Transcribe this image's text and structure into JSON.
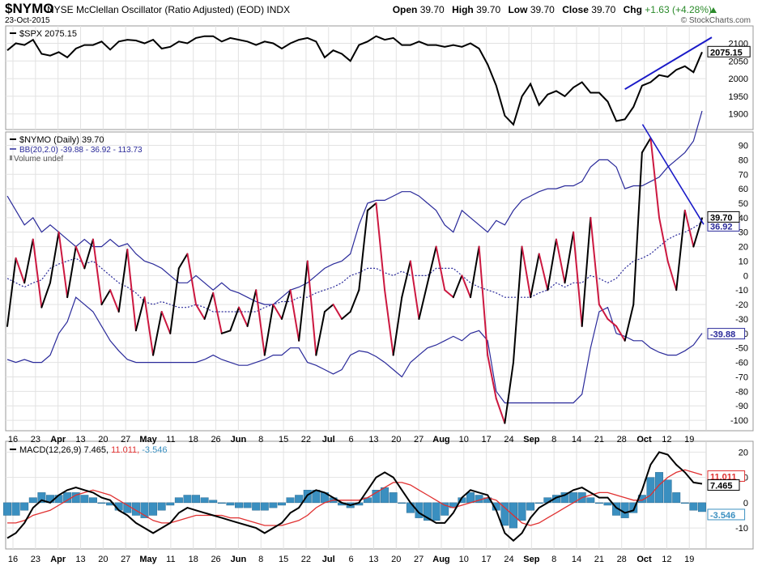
{
  "header": {
    "symbol": "$NYMO",
    "description": "NYSE McClellan Oscillator (Ratio Adjusted) (EOD) INDX",
    "date": "23-Oct-2015",
    "brand": "© StockCharts.com",
    "open_label": "Open",
    "open": "39.70",
    "high_label": "High",
    "high": "39.70",
    "low_label": "Low",
    "low": "39.70",
    "close_label": "Close",
    "close": "39.70",
    "chg_label": "Chg",
    "chg": "+1.63 (+4.28%)"
  },
  "colors": {
    "price_line": "#000000",
    "oscillator_up": "#000000",
    "oscillator_down": "#cc1840",
    "bollinger": "#2a2a9a",
    "trendline": "#1a1ac8",
    "macd_line": "#000000",
    "signal_line": "#e03030",
    "histogram": "#3a8fc0",
    "grid": "#e2e2e2"
  },
  "x_axis": {
    "tick_labels": [
      "16",
      "23",
      "Apr",
      "13",
      "20",
      "27",
      "May",
      "11",
      "18",
      "26",
      "Jun",
      "8",
      "15",
      "22",
      "Jul",
      "6",
      "13",
      "20",
      "27",
      "Aug",
      "10",
      "17",
      "24",
      "Sep",
      "8",
      "14",
      "21",
      "28",
      "Oct",
      "12",
      "19"
    ],
    "month_labels": [
      "Apr",
      "May",
      "Jun",
      "Jul",
      "Aug",
      "Sep",
      "Oct"
    ]
  },
  "chart_data": [
    {
      "type": "line",
      "panel": "price",
      "legend": "$SPX 2075.15",
      "last_value": "2075.15",
      "y_ticks": [
        1900,
        1950,
        2000,
        2050,
        2100
      ],
      "y_tick_labels": [
        "1900",
        "1950",
        "2000",
        "2050",
        "2100"
      ],
      "ylim": [
        1865,
        2140
      ],
      "x": [
        "Mar 16",
        "Mar 18",
        "Mar 20",
        "Mar 23",
        "Mar 25",
        "Mar 27",
        "Mar 31",
        "Apr 2",
        "Apr 7",
        "Apr 9",
        "Apr 13",
        "Apr 15",
        "Apr 17",
        "Apr 21",
        "Apr 23",
        "Apr 27",
        "Apr 29",
        "May 1",
        "May 5",
        "May 7",
        "May 11",
        "May 13",
        "May 15",
        "May 19",
        "May 21",
        "May 26",
        "May 28",
        "Jun 1",
        "Jun 3",
        "Jun 5",
        "Jun 9",
        "Jun 11",
        "Jun 15",
        "Jun 17",
        "Jun 19",
        "Jun 23",
        "Jun 25",
        "Jun 29",
        "Jul 1",
        "Jul 6",
        "Jul 8",
        "Jul 10",
        "Jul 14",
        "Jul 16",
        "Jul 20",
        "Jul 22",
        "Jul 24",
        "Jul 28",
        "Jul 30",
        "Aug 3",
        "Aug 5",
        "Aug 7",
        "Aug 11",
        "Aug 13",
        "Aug 17",
        "Aug 19",
        "Aug 20",
        "Aug 21",
        "Aug 24",
        "Aug 25",
        "Aug 26",
        "Aug 28",
        "Sep 1",
        "Sep 3",
        "Sep 8",
        "Sep 10",
        "Sep 14",
        "Sep 16",
        "Sep 18",
        "Sep 22",
        "Sep 24",
        "Sep 28",
        "Sep 29",
        "Oct 1",
        "Oct 5",
        "Oct 7",
        "Oct 9",
        "Oct 13",
        "Oct 15",
        "Oct 19",
        "Oct 21",
        "Oct 23"
      ],
      "values": [
        2080,
        2100,
        2095,
        2110,
        2070,
        2065,
        2075,
        2060,
        2085,
        2095,
        2095,
        2105,
        2082,
        2105,
        2110,
        2108,
        2100,
        2110,
        2085,
        2090,
        2105,
        2100,
        2115,
        2120,
        2120,
        2105,
        2115,
        2110,
        2105,
        2095,
        2105,
        2100,
        2085,
        2100,
        2110,
        2115,
        2105,
        2060,
        2080,
        2070,
        2050,
        2095,
        2105,
        2120,
        2110,
        2115,
        2095,
        2095,
        2105,
        2095,
        2095,
        2090,
        2095,
        2090,
        2100,
        2085,
        2040,
        1980,
        1895,
        1870,
        1950,
        1985,
        1925,
        1955,
        1965,
        1950,
        1975,
        1990,
        1960,
        1960,
        1935,
        1880,
        1885,
        1920,
        1980,
        1990,
        2010,
        2005,
        2025,
        2035,
        2018,
        2075.15
      ],
      "trendline": {
        "x": [
          "Sep 29",
          "Oct 23"
        ],
        "y": [
          1970,
          2110
        ]
      }
    },
    {
      "type": "line",
      "panel": "oscillator",
      "legend": "$NYMO (Daily) 39.70",
      "bb_legend": "BB(20,2.0) -39.88 - 36.92 - 113.73",
      "volume_legend": "Volume undef",
      "last_value": "39.70",
      "bb_lower_value": "-39.88",
      "bb_middle_value": "36.92",
      "y_ticks": [
        -100,
        -90,
        -80,
        -70,
        -60,
        -50,
        -40,
        -30,
        -20,
        -10,
        0,
        10,
        20,
        30,
        40,
        50,
        60,
        70,
        80,
        90
      ],
      "y_tick_labels": [
        "-100",
        "-90",
        "-80",
        "-70",
        "-60",
        "-50",
        "-40",
        "-30",
        "-20",
        "-10",
        "0",
        "10",
        "20",
        "30",
        "40",
        "50",
        "60",
        "70",
        "80",
        "90"
      ],
      "ylim": [
        -105,
        97
      ],
      "x": [
        "Mar 16",
        "Mar 18",
        "Mar 20",
        "Mar 23",
        "Mar 25",
        "Mar 27",
        "Mar 31",
        "Apr 2",
        "Apr 7",
        "Apr 9",
        "Apr 13",
        "Apr 15",
        "Apr 17",
        "Apr 21",
        "Apr 23",
        "Apr 27",
        "Apr 29",
        "May 1",
        "May 5",
        "May 7",
        "May 11",
        "May 13",
        "May 15",
        "May 19",
        "May 21",
        "May 26",
        "May 28",
        "Jun 1",
        "Jun 3",
        "Jun 5",
        "Jun 9",
        "Jun 11",
        "Jun 15",
        "Jun 17",
        "Jun 19",
        "Jun 23",
        "Jun 25",
        "Jun 29",
        "Jul 1",
        "Jul 6",
        "Jul 8",
        "Jul 10",
        "Jul 14",
        "Jul 16",
        "Jul 20",
        "Jul 22",
        "Jul 24",
        "Jul 28",
        "Jul 30",
        "Aug 3",
        "Aug 5",
        "Aug 7",
        "Aug 11",
        "Aug 13",
        "Aug 17",
        "Aug 19",
        "Aug 20",
        "Aug 21",
        "Aug 24",
        "Aug 25",
        "Aug 26",
        "Aug 28",
        "Sep 1",
        "Sep 3",
        "Sep 8",
        "Sep 10",
        "Sep 14",
        "Sep 16",
        "Sep 18",
        "Sep 22",
        "Sep 24",
        "Sep 28",
        "Sep 29",
        "Oct 1",
        "Oct 5",
        "Oct 7",
        "Oct 9",
        "Oct 13",
        "Oct 15",
        "Oct 19",
        "Oct 21",
        "Oct 23"
      ],
      "values": [
        -35,
        12,
        -5,
        25,
        -22,
        -5,
        30,
        -15,
        20,
        5,
        25,
        -20,
        -10,
        -25,
        18,
        -38,
        -15,
        -55,
        -25,
        -40,
        5,
        15,
        -20,
        -30,
        -12,
        -40,
        -38,
        -22,
        -35,
        -10,
        -55,
        -20,
        -30,
        -10,
        -45,
        10,
        -55,
        -25,
        -20,
        -30,
        -25,
        -10,
        45,
        50,
        -10,
        -55,
        -15,
        10,
        -30,
        -5,
        20,
        -10,
        -15,
        0,
        -15,
        20,
        -55,
        -85,
        -102,
        -60,
        20,
        -15,
        15,
        -10,
        25,
        -5,
        30,
        -35,
        40,
        -20,
        -30,
        -35,
        -45,
        -20,
        85,
        95,
        40,
        10,
        -10,
        45,
        20,
        39.7
      ],
      "bb_upper": [
        55,
        45,
        35,
        40,
        30,
        35,
        30,
        25,
        20,
        25,
        20,
        20,
        25,
        20,
        22,
        15,
        10,
        8,
        5,
        0,
        -5,
        -5,
        0,
        -5,
        -10,
        -5,
        -10,
        -12,
        -15,
        -18,
        -20,
        -20,
        -15,
        -10,
        -8,
        -5,
        0,
        5,
        8,
        10,
        15,
        35,
        50,
        52,
        52,
        55,
        58,
        58,
        55,
        50,
        45,
        35,
        30,
        45,
        40,
        35,
        30,
        38,
        35,
        45,
        52,
        55,
        58,
        60,
        60,
        62,
        62,
        65,
        75,
        80,
        80,
        75,
        60,
        62,
        62,
        65,
        68,
        75,
        80,
        85,
        93,
        113.73
      ],
      "bb_middle": [
        -2,
        -5,
        -8,
        -5,
        -3,
        5,
        8,
        10,
        12,
        8,
        10,
        5,
        0,
        -5,
        -8,
        -12,
        -18,
        -20,
        -18,
        -20,
        -22,
        -22,
        -20,
        -22,
        -25,
        -25,
        -25,
        -25,
        -25,
        -25,
        -22,
        -20,
        -18,
        -18,
        -15,
        -15,
        -12,
        -10,
        -8,
        -5,
        0,
        2,
        5,
        5,
        2,
        0,
        3,
        0,
        0,
        0,
        5,
        5,
        5,
        0,
        -5,
        -8,
        -10,
        -12,
        -15,
        -15,
        -15,
        -15,
        -12,
        -10,
        -5,
        -8,
        -5,
        -5,
        0,
        -2,
        -5,
        -2,
        5,
        10,
        12,
        15,
        20,
        25,
        28,
        30,
        33,
        36.92
      ],
      "bb_lower": [
        -58,
        -60,
        -58,
        -60,
        -60,
        -55,
        -40,
        -32,
        -15,
        -20,
        -25,
        -35,
        -45,
        -52,
        -58,
        -60,
        -60,
        -60,
        -60,
        -60,
        -60,
        -60,
        -60,
        -58,
        -55,
        -58,
        -60,
        -62,
        -62,
        -60,
        -58,
        -55,
        -55,
        -50,
        -50,
        -60,
        -62,
        -65,
        -68,
        -65,
        -55,
        -52,
        -53,
        -56,
        -60,
        -65,
        -70,
        -60,
        -55,
        -50,
        -48,
        -45,
        -42,
        -45,
        -40,
        -38,
        -45,
        -80,
        -88,
        -88,
        -88,
        -88,
        -88,
        -88,
        -88,
        -88,
        -88,
        -82,
        -50,
        -25,
        -22,
        -40,
        -42,
        -45,
        -45,
        -50,
        -53,
        -55,
        -55,
        -52,
        -48,
        -39.88
      ],
      "trendline": {
        "x": [
          "Oct 7",
          "Oct 23"
        ],
        "y": [
          100,
          32
        ]
      }
    },
    {
      "type": "line",
      "panel": "macd",
      "legend_label": "MACD(12,26,9)",
      "macd_value": "7.465",
      "signal_value": "11.011",
      "hist_value": "-3.546",
      "y_ticks": [
        -10,
        0,
        10,
        20
      ],
      "y_tick_labels": [
        "-10",
        "0",
        "10",
        "20"
      ],
      "ylim": [
        -17,
        23
      ],
      "x": [
        "Mar 16",
        "Mar 18",
        "Mar 20",
        "Mar 23",
        "Mar 25",
        "Mar 27",
        "Mar 31",
        "Apr 2",
        "Apr 7",
        "Apr 9",
        "Apr 13",
        "Apr 15",
        "Apr 17",
        "Apr 21",
        "Apr 23",
        "Apr 27",
        "Apr 29",
        "May 1",
        "May 5",
        "May 7",
        "May 11",
        "May 13",
        "May 15",
        "May 19",
        "May 21",
        "May 26",
        "May 28",
        "Jun 1",
        "Jun 3",
        "Jun 5",
        "Jun 9",
        "Jun 11",
        "Jun 15",
        "Jun 17",
        "Jun 19",
        "Jun 23",
        "Jun 25",
        "Jun 29",
        "Jul 1",
        "Jul 6",
        "Jul 8",
        "Jul 10",
        "Jul 14",
        "Jul 16",
        "Jul 20",
        "Jul 22",
        "Jul 24",
        "Jul 28",
        "Jul 30",
        "Aug 3",
        "Aug 5",
        "Aug 7",
        "Aug 11",
        "Aug 13",
        "Aug 17",
        "Aug 19",
        "Aug 20",
        "Aug 21",
        "Aug 24",
        "Aug 25",
        "Aug 26",
        "Aug 28",
        "Sep 1",
        "Sep 3",
        "Sep 8",
        "Sep 10",
        "Sep 14",
        "Sep 16",
        "Sep 18",
        "Sep 22",
        "Sep 24",
        "Sep 28",
        "Sep 29",
        "Oct 1",
        "Oct 5",
        "Oct 7",
        "Oct 9",
        "Oct 13",
        "Oct 15",
        "Oct 19",
        "Oct 21",
        "Oct 23"
      ],
      "macd": [
        -14,
        -12,
        -8,
        -2,
        1,
        0,
        3,
        5,
        6,
        5,
        4,
        2,
        1,
        -3,
        -5,
        -8,
        -10,
        -12,
        -10,
        -8,
        -4,
        -2,
        -3,
        -4,
        -5,
        -6,
        -7,
        -8,
        -9,
        -10,
        -12,
        -10,
        -8,
        -4,
        -2,
        3,
        5,
        4,
        2,
        0,
        -1,
        0,
        5,
        10,
        12,
        10,
        5,
        0,
        -4,
        -6,
        -8,
        -8,
        -4,
        2,
        5,
        4,
        3,
        -3,
        -12,
        -15,
        -12,
        -6,
        -2,
        0,
        2,
        3,
        5,
        6,
        4,
        2,
        2,
        -2,
        -4,
        -3,
        5,
        15,
        20,
        19,
        15,
        12,
        8,
        7.465
      ],
      "signal": [
        -8,
        -8,
        -7,
        -5,
        -4,
        -3,
        -1,
        1,
        3,
        4,
        5,
        4,
        3,
        1,
        -1,
        -3,
        -5,
        -7,
        -8,
        -8,
        -7,
        -6,
        -5,
        -5,
        -5,
        -5,
        -6,
        -6,
        -7,
        -8,
        -9,
        -9,
        -9,
        -8,
        -7,
        -5,
        -2,
        0,
        1,
        1,
        1,
        1,
        2,
        4,
        6,
        8,
        8,
        7,
        5,
        3,
        1,
        -1,
        -2,
        -1,
        0,
        1,
        2,
        1,
        -2,
        -5,
        -8,
        -9,
        -8,
        -6,
        -4,
        -2,
        0,
        2,
        3,
        4,
        4,
        3,
        2,
        1,
        1,
        3,
        7,
        10,
        12,
        13,
        12,
        11.011
      ],
      "histogram": [
        -5,
        -5,
        -3,
        2,
        4,
        3,
        3,
        4,
        4,
        3,
        2,
        0,
        -1,
        -3,
        -4,
        -5,
        -6,
        -5,
        -3,
        -1,
        2,
        3,
        3,
        2,
        1,
        0,
        -1,
        -2,
        -2,
        -3,
        -3,
        -2,
        -1,
        2,
        3,
        5,
        5,
        4,
        2,
        -1,
        -2,
        -1,
        2,
        5,
        6,
        4,
        0,
        -4,
        -6,
        -7,
        -7,
        -5,
        -2,
        2,
        4,
        3,
        2,
        -3,
        -9,
        -10,
        -7,
        -3,
        0,
        2,
        3,
        4,
        4,
        4,
        2,
        0,
        -1,
        -5,
        -6,
        -4,
        3,
        10,
        12,
        9,
        4,
        0,
        -3,
        -3.546
      ]
    }
  ]
}
